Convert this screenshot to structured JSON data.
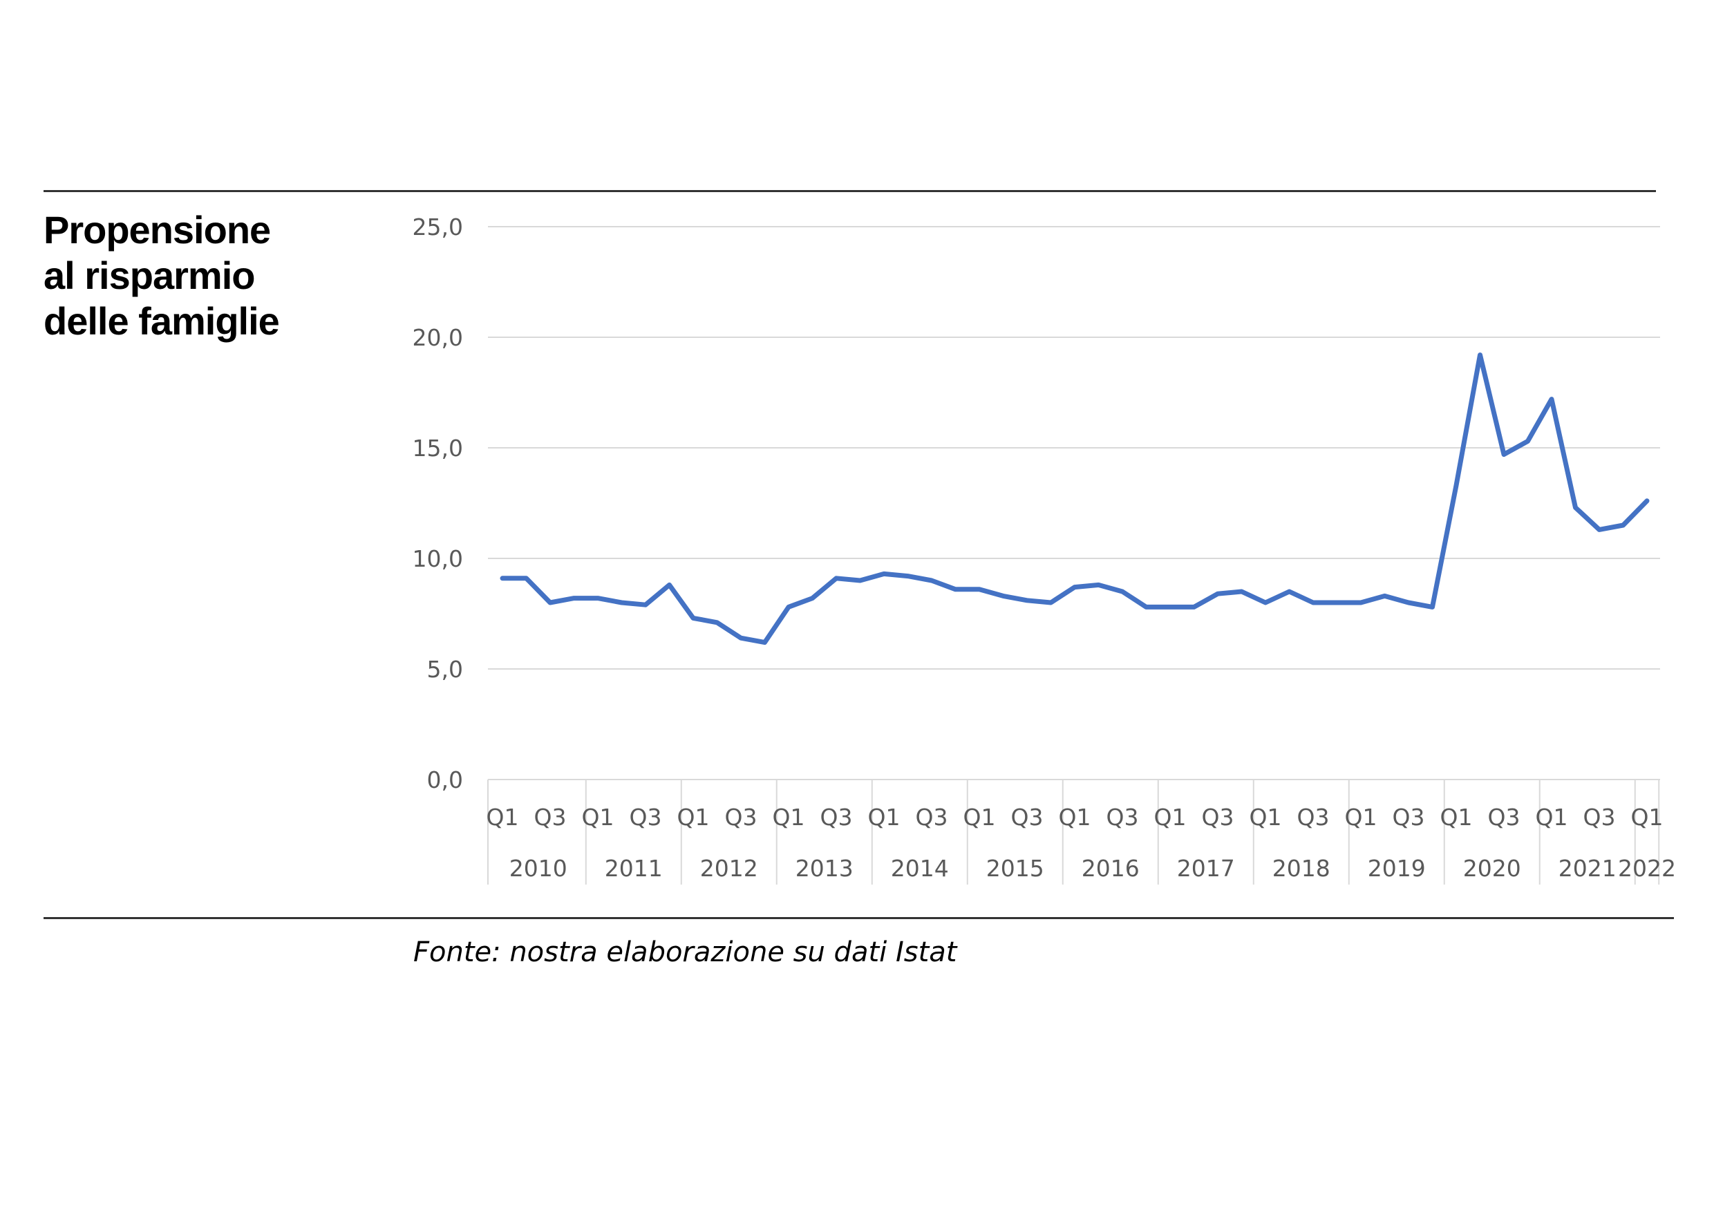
{
  "title_lines": [
    "Propensione",
    "al risparmio",
    "delle famiglie"
  ],
  "source": "Fonte: nostra elaborazione su dati Istat",
  "colors": {
    "line": "#4472c4",
    "grid": "#d9d9d9",
    "rule": "#333333",
    "tick_text": "#595959"
  },
  "chart_data": {
    "type": "line",
    "title": "Propensione al risparmio delle famiglie",
    "xlabel": "",
    "ylabel": "",
    "ylim": [
      0,
      25
    ],
    "y_ticks": [
      "0,0",
      "5,0",
      "10,0",
      "15,0",
      "20,0",
      "25,0"
    ],
    "y_tick_values": [
      0,
      5,
      10,
      15,
      20,
      25
    ],
    "grid": true,
    "legend": "none",
    "years": [
      "2010",
      "2011",
      "2012",
      "2013",
      "2014",
      "2015",
      "2016",
      "2017",
      "2018",
      "2019",
      "2020",
      "2021",
      "2022"
    ],
    "quarter_tick_labels": [
      "Q1",
      "Q3",
      "Q1",
      "Q3",
      "Q1",
      "Q3",
      "Q1",
      "Q3",
      "Q1",
      "Q3",
      "Q1",
      "Q3",
      "Q1",
      "Q3",
      "Q1",
      "Q3",
      "Q1",
      "Q3",
      "Q1",
      "Q3",
      "Q1",
      "Q3",
      "Q1",
      "Q3",
      "Q1"
    ],
    "categories": [
      "2010 Q1",
      "2010 Q2",
      "2010 Q3",
      "2010 Q4",
      "2011 Q1",
      "2011 Q2",
      "2011 Q3",
      "2011 Q4",
      "2012 Q1",
      "2012 Q2",
      "2012 Q3",
      "2012 Q4",
      "2013 Q1",
      "2013 Q2",
      "2013 Q3",
      "2013 Q4",
      "2014 Q1",
      "2014 Q2",
      "2014 Q3",
      "2014 Q4",
      "2015 Q1",
      "2015 Q2",
      "2015 Q3",
      "2015 Q4",
      "2016 Q1",
      "2016 Q2",
      "2016 Q3",
      "2016 Q4",
      "2017 Q1",
      "2017 Q2",
      "2017 Q3",
      "2017 Q4",
      "2018 Q1",
      "2018 Q2",
      "2018 Q3",
      "2018 Q4",
      "2019 Q1",
      "2019 Q2",
      "2019 Q3",
      "2019 Q4",
      "2020 Q1",
      "2020 Q2",
      "2020 Q3",
      "2020 Q4",
      "2021 Q1",
      "2021 Q2",
      "2021 Q3",
      "2021 Q4",
      "2022 Q1"
    ],
    "series": [
      {
        "values": [
          9.1,
          9.1,
          8.0,
          8.2,
          8.2,
          8.0,
          7.9,
          8.8,
          7.3,
          7.1,
          6.4,
          6.2,
          7.8,
          8.2,
          9.1,
          9.0,
          9.3,
          9.2,
          9.0,
          8.6,
          8.6,
          8.3,
          8.1,
          8.0,
          8.7,
          8.8,
          8.5,
          7.8,
          7.8,
          7.8,
          8.4,
          8.5,
          8.0,
          8.5,
          8.0,
          8.0,
          8.0,
          8.3,
          8.0,
          7.8,
          13.3,
          19.2,
          14.7,
          15.3,
          17.2,
          12.3,
          11.3,
          11.5,
          12.6
        ]
      }
    ]
  }
}
